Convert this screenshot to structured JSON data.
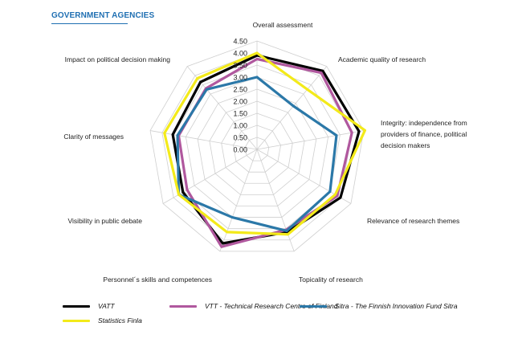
{
  "page": {
    "title": "GOVERNMENT AGENCIES"
  },
  "chart_data": {
    "type": "radar",
    "title": "GOVERNMENT AGENCIES",
    "axes": [
      "Overall assessment",
      "Academic quality of research",
      "Integrity: independence from providers of finance, political decision makers",
      "Relevance of research themes",
      "Topicality of research",
      "Personnel´s skills and competences",
      "Visibility in public debate",
      "Clarity of messages",
      "Impact on political decision making"
    ],
    "axis_label_lines": [
      [
        "Overall assessment"
      ],
      [
        "Academic quality of research"
      ],
      [
        "Integrity: independence from",
        "providers of finance, political",
        "decision makers"
      ],
      [
        "Relevance of research themes"
      ],
      [
        "Topicality of research"
      ],
      [
        "Personnel´s skills and competences"
      ],
      [
        "Visibility in public debate"
      ],
      [
        "Clarity of messages"
      ],
      [
        "Impact on political decision making"
      ]
    ],
    "ticks": [
      "0.00",
      "0.50",
      "1.00",
      "1.50",
      "2.00",
      "2.50",
      "3.00",
      "3.50",
      "4.00",
      "4.50"
    ],
    "range": [
      0,
      4.5
    ],
    "series": [
      {
        "name": "VATT",
        "color": "#000000",
        "values": [
          3.9,
          4.25,
          4.3,
          4.0,
          3.65,
          4.15,
          3.55,
          3.55,
          3.65
        ]
      },
      {
        "name": "VTT - Technical Research Centre of Finland",
        "color": "#b0589e",
        "values": [
          3.75,
          4.15,
          4.0,
          3.85,
          3.55,
          4.3,
          3.35,
          3.3,
          3.3
        ]
      },
      {
        "name": "Sitra - The Finnish Innovation Fund Sitra",
        "color": "#2b78a8",
        "values": [
          3.0,
          2.35,
          3.35,
          3.5,
          3.6,
          3.0,
          3.75,
          3.35,
          3.25
        ]
      },
      {
        "name": "Statistics Finla",
        "color": "#f3ea1a",
        "values": [
          4.0,
          3.25,
          4.55,
          3.75,
          3.75,
          3.65,
          3.75,
          3.9,
          3.85
        ]
      }
    ],
    "legend": [
      "VATT",
      "VTT - Technical Research Centre of Finland",
      "Sitra - The Finnish Innovation Fund Sitra",
      "Statistics Finla"
    ],
    "legend_position": "bottom"
  }
}
